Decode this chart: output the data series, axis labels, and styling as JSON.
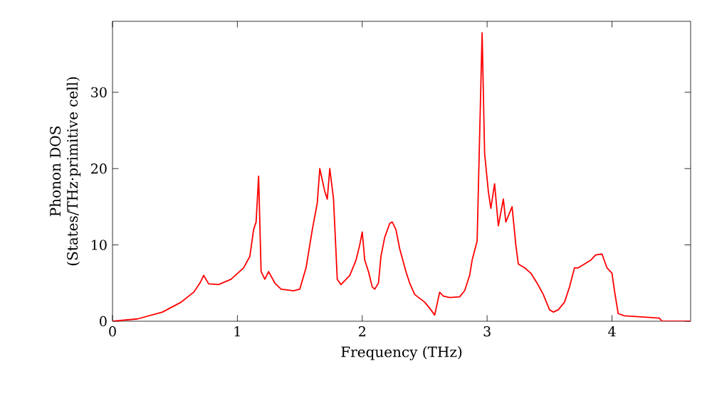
{
  "chart_data": {
    "type": "line",
    "xlabel": "Frequency (THz)",
    "ylabel": "Phonon DOS\n(States/THz·primitive cell)",
    "xlim": [
      0,
      4.63
    ],
    "ylim": [
      0,
      39.3
    ],
    "xticks": [
      0,
      1,
      2,
      3,
      4
    ],
    "yticks": [
      0,
      10,
      20,
      30
    ],
    "grid": false,
    "marker": "none",
    "line_style": "solid",
    "series": [
      {
        "color": "#ff0000",
        "x": [
          0,
          0.2,
          0.4,
          0.55,
          0.65,
          0.7,
          0.73,
          0.77,
          0.85,
          0.95,
          1.05,
          1.1,
          1.13,
          1.15,
          1.17,
          1.19,
          1.22,
          1.25,
          1.3,
          1.35,
          1.45,
          1.5,
          1.55,
          1.6,
          1.64,
          1.66,
          1.7,
          1.72,
          1.74,
          1.77,
          1.8,
          1.83,
          1.9,
          1.95,
          1.98,
          2.0,
          2.02,
          2.05,
          2.08,
          2.1,
          2.13,
          2.15,
          2.18,
          2.22,
          2.24,
          2.27,
          2.3,
          2.35,
          2.38,
          2.42,
          2.5,
          2.55,
          2.58,
          2.62,
          2.65,
          2.7,
          2.78,
          2.82,
          2.86,
          2.88,
          2.92,
          2.96,
          2.98,
          3.01,
          3.03,
          3.06,
          3.09,
          3.13,
          3.15,
          3.2,
          3.23,
          3.25,
          3.3,
          3.35,
          3.4,
          3.45,
          3.5,
          3.53,
          3.57,
          3.62,
          3.66,
          3.7,
          3.73,
          3.78,
          3.83,
          3.87,
          3.92,
          3.96,
          4.0,
          4.02,
          4.05,
          4.1,
          4.3,
          4.38,
          4.4,
          4.63
        ],
        "values": [
          0,
          0.3,
          1.2,
          2.5,
          3.8,
          5,
          6,
          4.9,
          4.8,
          5.5,
          7,
          8.5,
          12,
          13,
          19,
          6.5,
          5.5,
          6.5,
          5,
          4.2,
          4,
          4.2,
          7,
          12,
          15.5,
          20,
          17,
          16,
          20,
          16,
          5.5,
          4.8,
          6,
          8,
          10,
          11.7,
          8,
          6.5,
          4.5,
          4.2,
          5,
          8.5,
          11,
          12.8,
          13,
          12,
          9.5,
          6.5,
          5,
          3.5,
          2.5,
          1.5,
          0.8,
          3.8,
          3.3,
          3.1,
          3.2,
          4,
          6,
          8,
          10.5,
          37.8,
          22,
          17,
          14.8,
          18,
          12.5,
          16,
          13,
          15,
          10,
          7.5,
          7,
          6.3,
          5,
          3.5,
          1.5,
          1.2,
          1.5,
          2.5,
          4.5,
          7,
          7,
          7.5,
          8,
          8.7,
          8.8,
          7,
          6.3,
          4,
          1,
          0.7,
          0.5,
          0.4,
          0,
          0
        ]
      }
    ]
  }
}
